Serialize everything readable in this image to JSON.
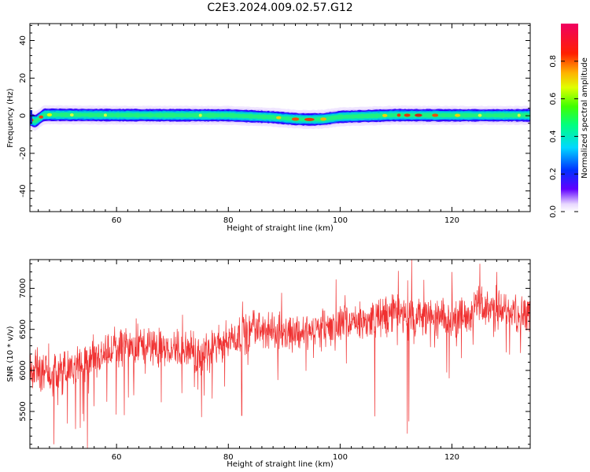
{
  "figure": {
    "title": "C2E3.2024.009.02.57.G12"
  },
  "chart_data": [
    {
      "type": "heatmap",
      "xlabel": "Height of straight line (km)",
      "ylabel": "Frequency (Hz)",
      "xlim": [
        44.5,
        134
      ],
      "ylim": [
        -51,
        49
      ],
      "xticks": [
        60,
        80,
        100,
        120
      ],
      "yticks": [
        -40,
        -20,
        0,
        20,
        40
      ],
      "band": {
        "description_points_x": [
          44.5,
          45.5,
          47,
          60,
          80,
          88,
          92,
          94.5,
          97,
          100,
          110,
          120,
          134
        ],
        "center_hz": [
          -2,
          -3,
          0.5,
          0.3,
          0.2,
          -0.8,
          -1.8,
          -2.0,
          -1.8,
          -0.6,
          0.3,
          0.2,
          0.2
        ],
        "core_halfwidth_hz": 2,
        "halo_halfwidth_hz": 5
      },
      "colorbar": {
        "label": "Normalized spectral amplitude",
        "range": [
          0,
          1
        ],
        "ticks": [
          0.0,
          0.2,
          0.4,
          0.6,
          0.8
        ],
        "tick_labels": [
          "0.0",
          "0.2",
          "0.4",
          "0.6",
          "0.8"
        ]
      }
    },
    {
      "type": "line",
      "xlabel": "Height of straight line (km)",
      "ylabel": "SNR (10 * v/v)",
      "xlim": [
        44.5,
        134
      ],
      "ylim": [
        5050,
        7350
      ],
      "xticks": [
        60,
        80,
        100,
        120
      ],
      "yticks": [
        5500,
        6000,
        6500,
        7000
      ],
      "series": [
        {
          "color": "#f03030",
          "trend_x": [
            44.5,
            50,
            55,
            60,
            65,
            70,
            75,
            80,
            85,
            90,
            95,
            100,
            105,
            110,
            115,
            120,
            125,
            130,
            134
          ],
          "trend_y": [
            5950,
            5980,
            6080,
            6250,
            6300,
            6280,
            6200,
            6380,
            6500,
            6450,
            6480,
            6550,
            6600,
            6700,
            6650,
            6600,
            6800,
            6700,
            6720
          ],
          "dips": [
            {
              "x": 48.8,
              "y": 5100
            },
            {
              "x": 54.8,
              "y": 5050
            },
            {
              "x": 53.5,
              "y": 5300
            },
            {
              "x": 75.2,
              "y": 5430
            },
            {
              "x": 82.4,
              "y": 5450
            },
            {
              "x": 106.2,
              "y": 5440
            },
            {
              "x": 112,
              "y": 5230
            },
            {
              "x": 112.3,
              "y": 5380
            }
          ],
          "spikes": [
            {
              "x": 112.8,
              "y": 7350
            },
            {
              "x": 120,
              "y": 7200
            },
            {
              "x": 125,
              "y": 7300
            },
            {
              "x": 128,
              "y": 7200
            }
          ]
        }
      ]
    }
  ]
}
